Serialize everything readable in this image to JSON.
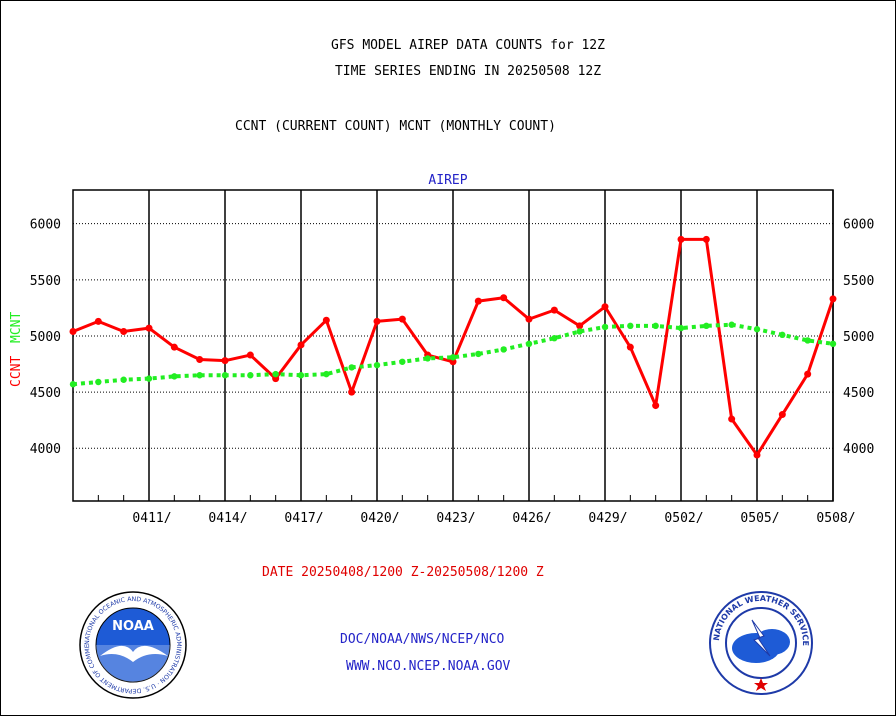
{
  "titles": {
    "line1": "GFS MODEL AIREP DATA COUNTS for 12Z",
    "line2": "TIME SERIES ENDING IN 20250508 12Z",
    "line3": "CCNT (CURRENT COUNT) MCNT (MONTHLY COUNT)"
  },
  "footer": {
    "date_range": "DATE 20250408/1200 Z-20250508/1200 Z",
    "credit_line1": "DOC/NOAA/NWS/NCEP/NCO",
    "credit_line2": "WWW.NCO.NCEP.NOAA.GOV"
  },
  "logos": {
    "noaa": {
      "text": "NOAA",
      "ring_text": "NATIONAL OCEANIC AND ATMOSPHERIC ADMINISTRATION · U.S. DEPARTMENT OF COMMERCE"
    },
    "nws": {
      "ring_text": "NATIONAL WEATHER SERVICE"
    }
  },
  "colors": {
    "ccnt": "#ff0000",
    "mcnt": "#22ee22",
    "title_blue": "#2323c8",
    "frame": "#000000"
  },
  "chart_data": {
    "type": "line",
    "title": "AIREP",
    "ylabel_left": "CCNT",
    "ylabel_right": "MCNT",
    "x": [
      "0408",
      "0409",
      "0410",
      "0411",
      "0412",
      "0413",
      "0414",
      "0415",
      "0416",
      "0417",
      "0418",
      "0419",
      "0420",
      "0421",
      "0422",
      "0423",
      "0424",
      "0425",
      "0426",
      "0427",
      "0428",
      "0429",
      "0430",
      "0501",
      "0502",
      "0503",
      "0504",
      "0505",
      "0506",
      "0507",
      "0508"
    ],
    "x_ticks": [
      "0411/",
      "0414/",
      "0417/",
      "0420/",
      "0423/",
      "0426/",
      "0429/",
      "0502/",
      "0505/",
      "0508/"
    ],
    "y_ticks": [
      4000,
      4500,
      5000,
      5500,
      6000
    ],
    "ylim": [
      3530,
      6300
    ],
    "grid": true,
    "series": [
      {
        "name": "CCNT",
        "color": "#ff0000",
        "values": [
          5040,
          5130,
          5040,
          5070,
          4900,
          4790,
          4780,
          4830,
          4620,
          4920,
          5140,
          4500,
          5130,
          5150,
          4830,
          4770,
          5310,
          5340,
          5150,
          5230,
          5090,
          5260,
          4900,
          4380,
          5860,
          5860,
          4260,
          3940,
          4300,
          4660,
          5330
        ]
      },
      {
        "name": "MCNT",
        "color": "#22ee22",
        "values": [
          4570,
          4590,
          4610,
          4620,
          4640,
          4650,
          4650,
          4650,
          4660,
          4650,
          4660,
          4720,
          4740,
          4770,
          4800,
          4810,
          4840,
          4880,
          4930,
          4980,
          5040,
          5080,
          5090,
          5090,
          5070,
          5090,
          5100,
          5060,
          5010,
          4960,
          4930
        ]
      }
    ]
  }
}
